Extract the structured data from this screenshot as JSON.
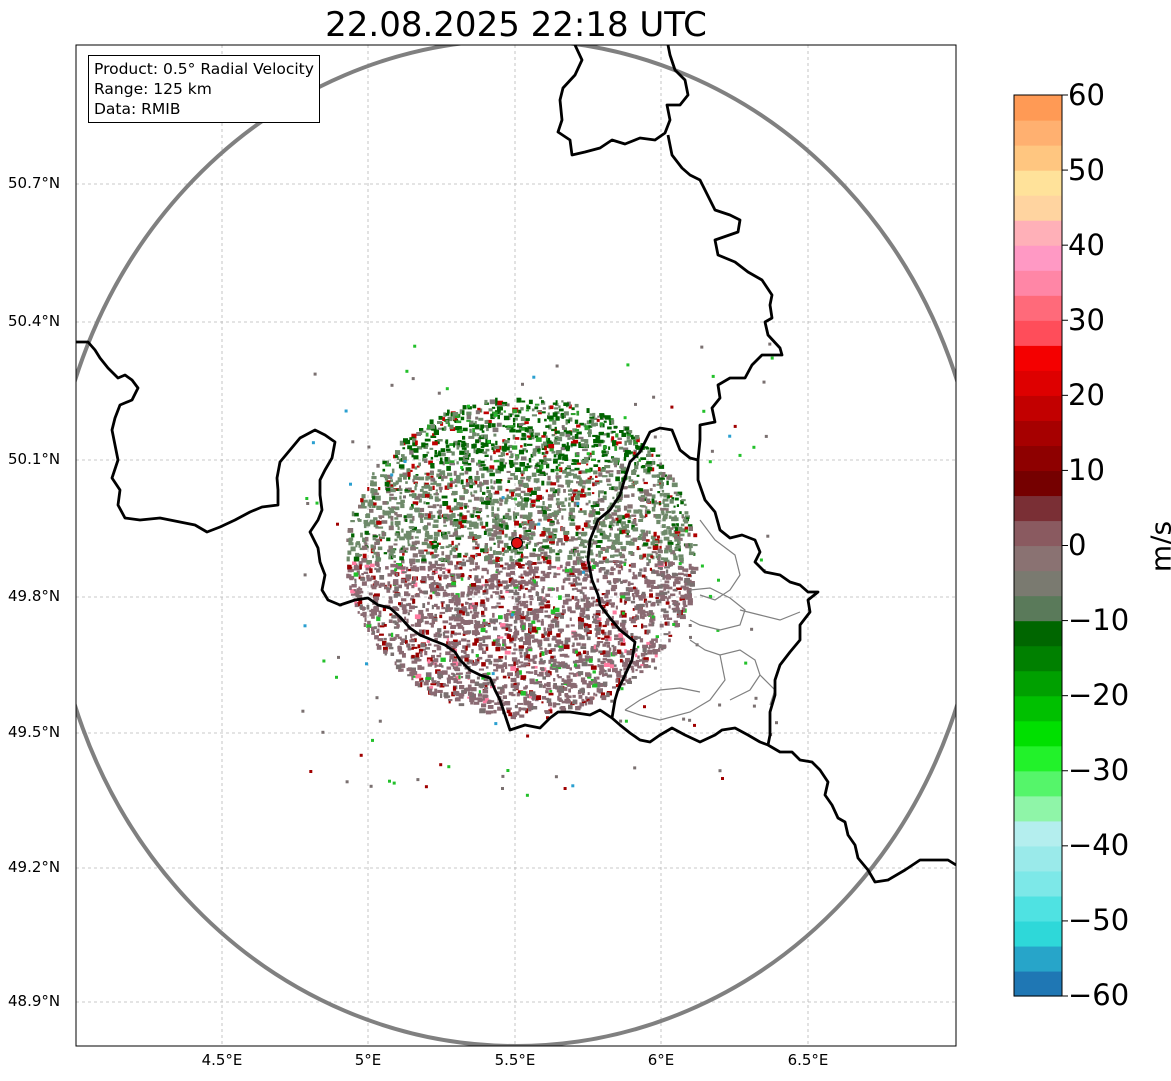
{
  "title": "22.08.2025 22:18 UTC",
  "info": {
    "product": "Product: 0.5° Radial Velocity",
    "range": "Range: 125 km",
    "data": "Data: RMIB"
  },
  "axes": {
    "lat_labels": [
      "50.7°N",
      "50.4°N",
      "50.1°N",
      "49.8°N",
      "49.5°N",
      "49.2°N",
      "48.9°N"
    ],
    "lon_labels": [
      "4.5°E",
      "5°E",
      "5.5°E",
      "6°E",
      "6.5°E"
    ]
  },
  "colorbar": {
    "ticks": [
      "60",
      "50",
      "40",
      "30",
      "20",
      "10",
      "0",
      "−10",
      "−20",
      "−30",
      "−40",
      "−50",
      "−60"
    ],
    "unit": "m/s",
    "range": [
      -60,
      60
    ],
    "colors": [
      "#1f77b4",
      "#27a5c9",
      "#2ed8d9",
      "#4fe2e2",
      "#7de8e8",
      "#9aeaea",
      "#b4eeee",
      "#8ff5a8",
      "#55f56a",
      "#22f22a",
      "#00e000",
      "#00c000",
      "#00a000",
      "#008000",
      "#006600",
      "#5a7a5a",
      "#7a7a70",
      "#8a7272",
      "#8a5a60",
      "#7a2f35",
      "#750000",
      "#8e0000",
      "#a60000",
      "#c20000",
      "#de0000",
      "#f40000",
      "#ff4d5a",
      "#ff6a7a",
      "#ff86a6",
      "#ff99c4",
      "#ffb0b8",
      "#ffd4a0",
      "#ffe29a",
      "#ffc680",
      "#ffb070",
      "#ff9a55"
    ]
  },
  "legend_style": {
    "background": "#ffffff",
    "border": "#000000"
  }
}
